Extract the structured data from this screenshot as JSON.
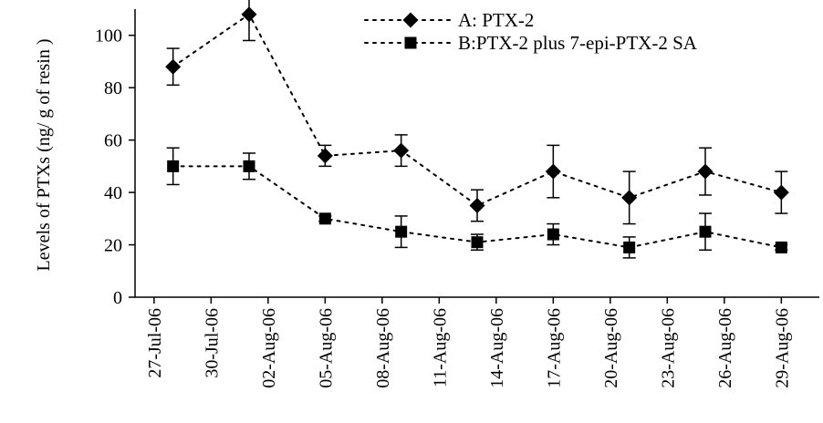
{
  "chart_data": {
    "type": "line",
    "ylabel": "Levels of PTXs (ng/ g of  resin )",
    "xlabel": "",
    "ylim": [
      0,
      110
    ],
    "yticks": [
      0,
      20,
      40,
      60,
      80,
      100
    ],
    "x_tick_labels": [
      "27-Jul-06",
      "30-Jul-06",
      "02-Aug-06",
      "05-Aug-06",
      "08-Aug-06",
      "11-Aug-06",
      "14-Aug-06",
      "17-Aug-06",
      "20-Aug-06",
      "23-Aug-06",
      "26-Aug-06",
      "29-Aug-06"
    ],
    "xlim": [
      "2006-07-26",
      "2006-08-31"
    ],
    "grid": false,
    "legend": "top-right",
    "series": [
      {
        "name": "A: PTX-2",
        "marker": "diamond",
        "color": "#000000",
        "points": [
          {
            "x": "2006-07-28",
            "y": 88,
            "err": 7
          },
          {
            "x": "2006-08-01",
            "y": 108,
            "err": 10
          },
          {
            "x": "2006-08-05",
            "y": 54,
            "err": 4
          },
          {
            "x": "2006-08-09",
            "y": 56,
            "err": 6
          },
          {
            "x": "2006-08-13",
            "y": 35,
            "err": 6
          },
          {
            "x": "2006-08-17",
            "y": 48,
            "err": 10
          },
          {
            "x": "2006-08-21",
            "y": 38,
            "err": 10
          },
          {
            "x": "2006-08-25",
            "y": 48,
            "err": 9
          },
          {
            "x": "2006-08-29",
            "y": 40,
            "err": 8
          }
        ]
      },
      {
        "name": "B:PTX-2 plus 7-epi-PTX-2 SA",
        "marker": "square",
        "color": "#000000",
        "points": [
          {
            "x": "2006-07-28",
            "y": 50,
            "err": 7
          },
          {
            "x": "2006-08-01",
            "y": 50,
            "err": 5
          },
          {
            "x": "2006-08-05",
            "y": 30,
            "err": 1
          },
          {
            "x": "2006-08-09",
            "y": 25,
            "err": 6
          },
          {
            "x": "2006-08-13",
            "y": 21,
            "err": 3
          },
          {
            "x": "2006-08-17",
            "y": 24,
            "err": 4
          },
          {
            "x": "2006-08-21",
            "y": 19,
            "err": 4
          },
          {
            "x": "2006-08-25",
            "y": 25,
            "err": 7
          },
          {
            "x": "2006-08-29",
            "y": 19,
            "err": 1
          }
        ]
      }
    ]
  }
}
